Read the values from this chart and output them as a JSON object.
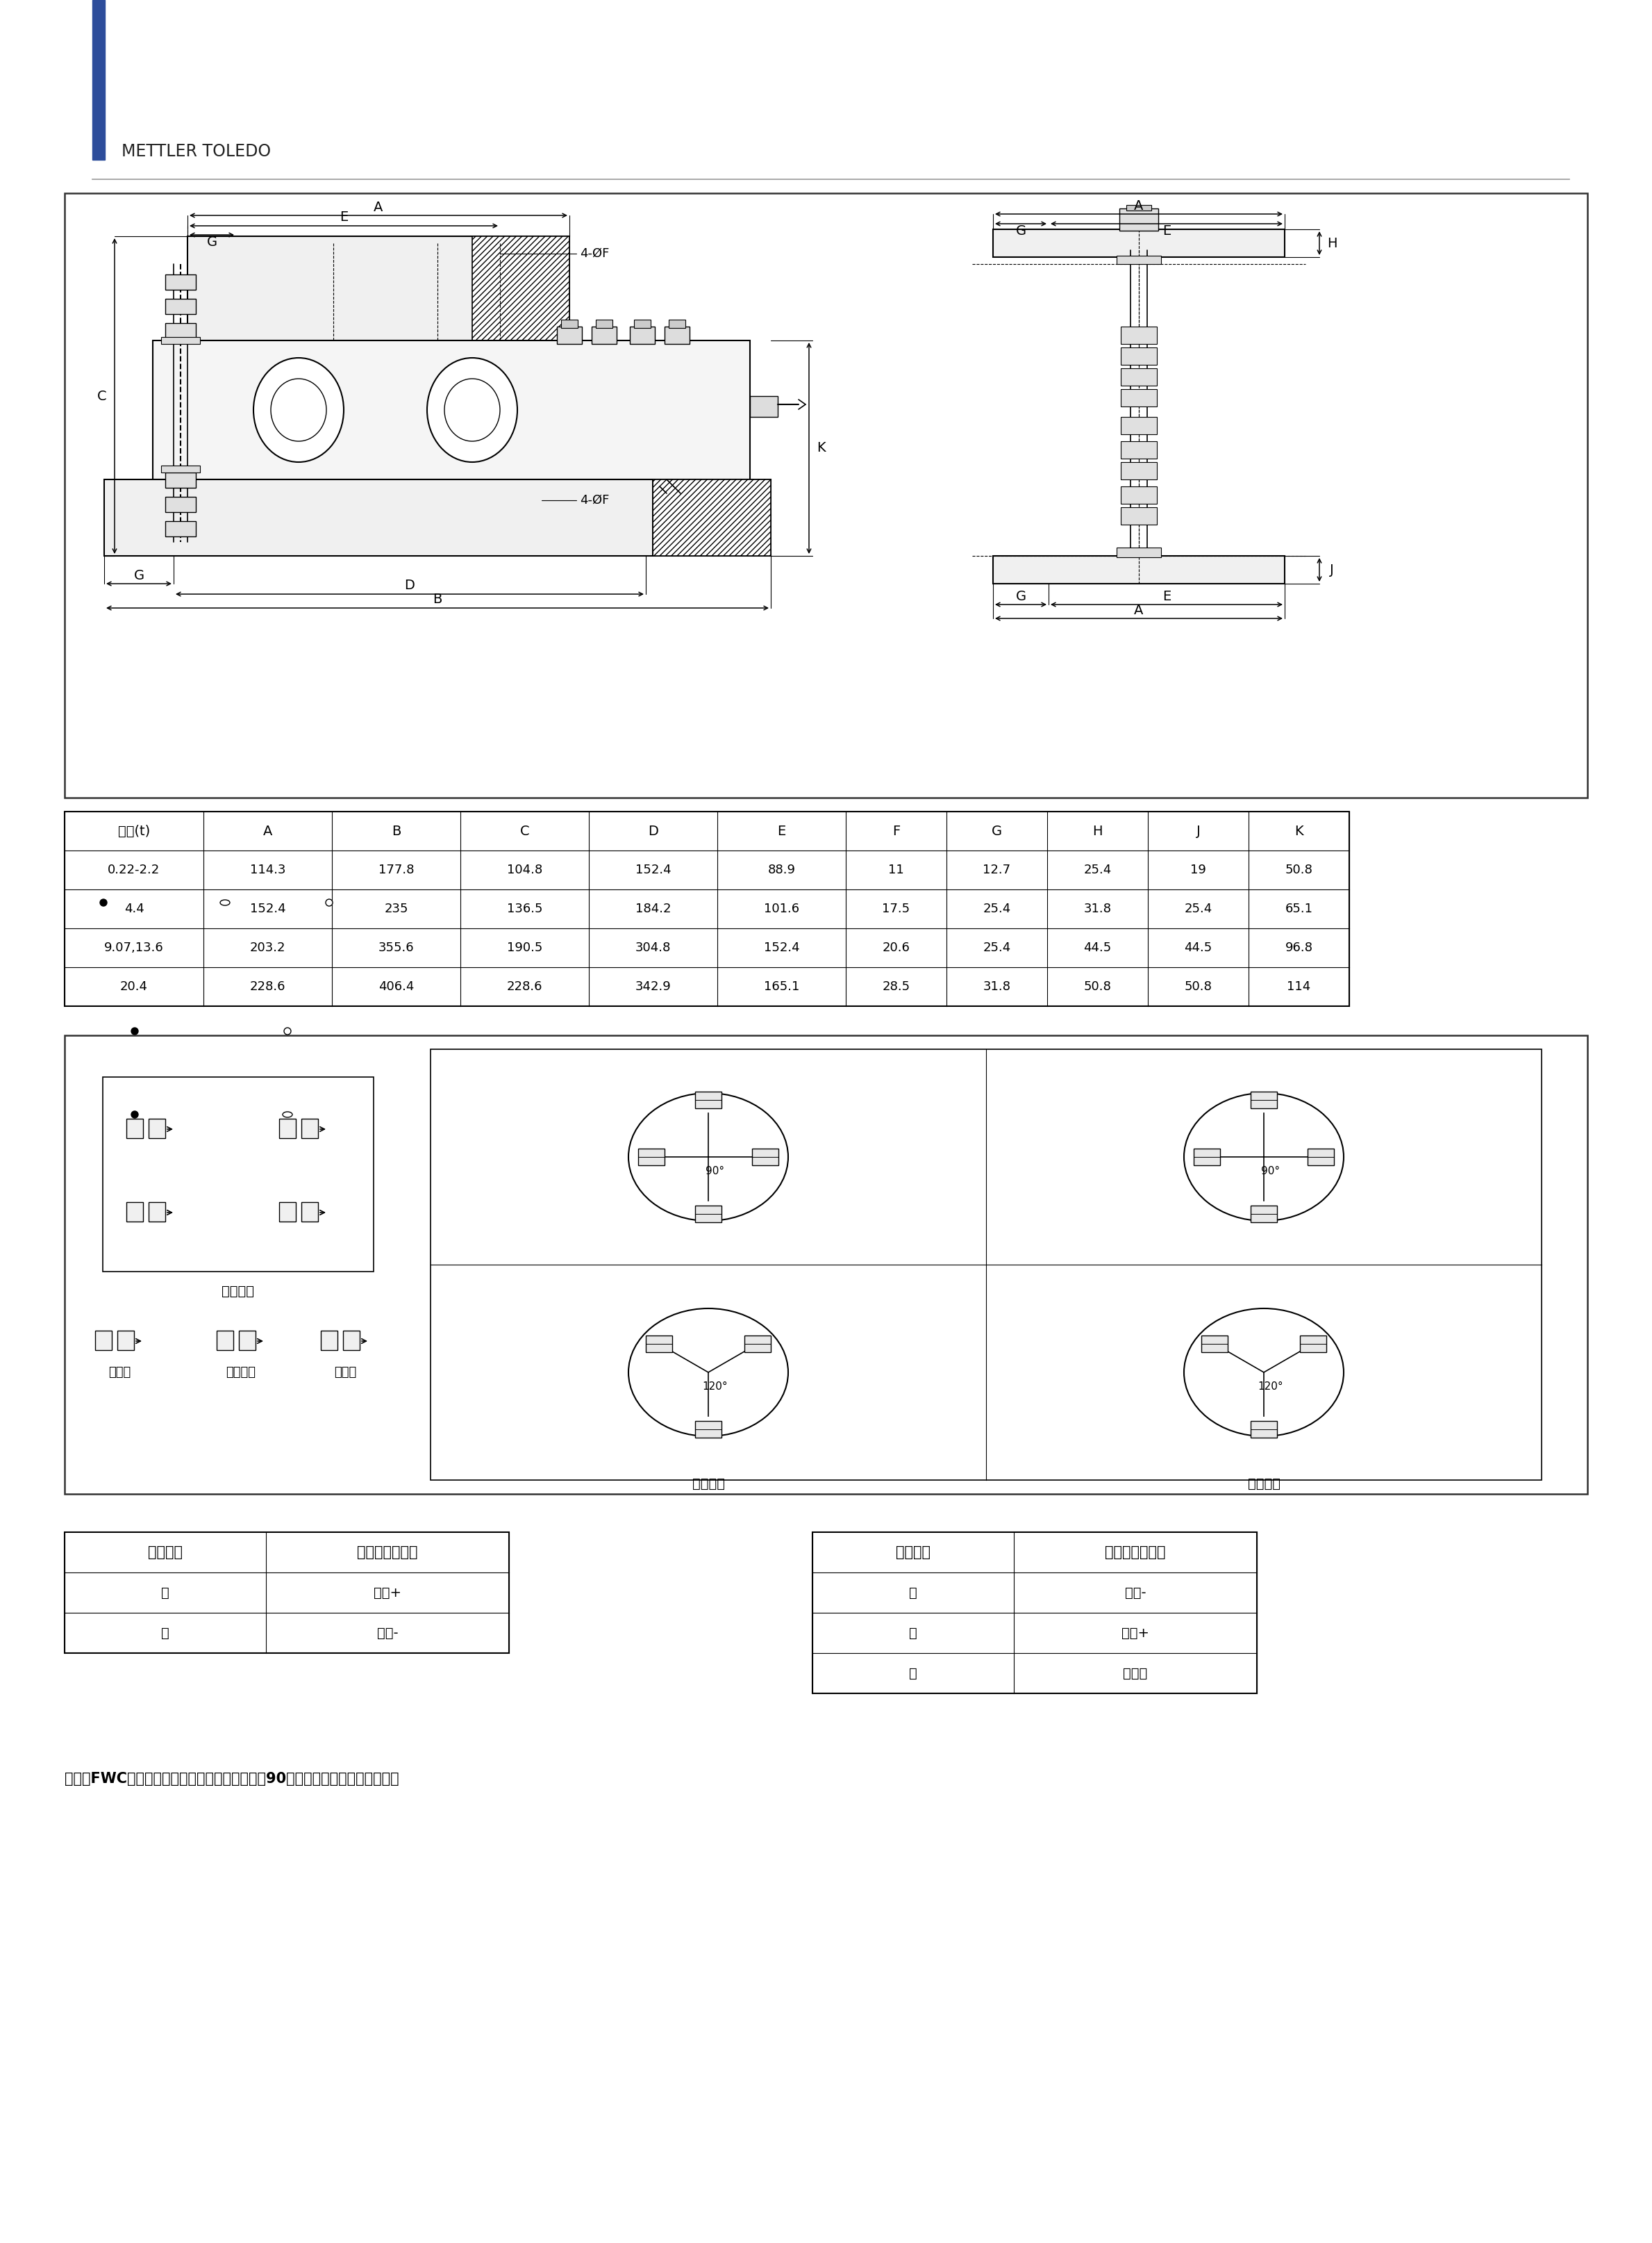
{
  "title_logo": "METTLER TOLEDO",
  "blue_bar_color": "#2e4fa3",
  "page_bg": "#ffffff",
  "dim_table": {
    "headers": [
      "称量(t)",
      "A",
      "B",
      "C",
      "D",
      "E",
      "F",
      "G",
      "H",
      "J",
      "K"
    ],
    "rows": [
      [
        "0.22-2.2",
        "114.3",
        "177.8",
        "104.8",
        "152.4",
        "88.9",
        "11",
        "12.7",
        "25.4",
        "19",
        "50.8"
      ],
      [
        "4.4",
        "152.4",
        "235",
        "136.5",
        "184.2",
        "101.6",
        "17.5",
        "25.4",
        "31.8",
        "25.4",
        "65.1"
      ],
      [
        "9.07,13.6",
        "203.2",
        "355.6",
        "190.5",
        "304.8",
        "152.4",
        "20.6",
        "25.4",
        "44.5",
        "44.5",
        "96.8"
      ],
      [
        "20.4",
        "228.6",
        "406.4",
        "228.6",
        "342.9",
        "165.1",
        "28.5",
        "31.8",
        "50.8",
        "50.8",
        "114"
      ]
    ]
  },
  "cable_table1": {
    "headers": [
      "电缆颜色",
      "色标（四芯线）"
    ],
    "rows": [
      [
        "绿",
        "激励+"
      ],
      [
        "黑",
        "激励-"
      ]
    ]
  },
  "cable_table2": {
    "headers": [
      "电缆颜色",
      "色标（四芯线）"
    ],
    "rows": [
      [
        "红",
        "信号-"
      ],
      [
        "白",
        "信号+"
      ],
      [
        "黄",
        "屏蔽线"
      ]
    ]
  },
  "note_text": "注意：FWC不锈锃静载称重模块中顶板可以转动90度，以方便切向或径向布置。",
  "rect_label": "矩形布置",
  "tang_label": "切向布置",
  "rad_label": "径向布置",
  "fixed_label": "固定式",
  "semi_label": "半浮动式",
  "float_label": "浮动式"
}
